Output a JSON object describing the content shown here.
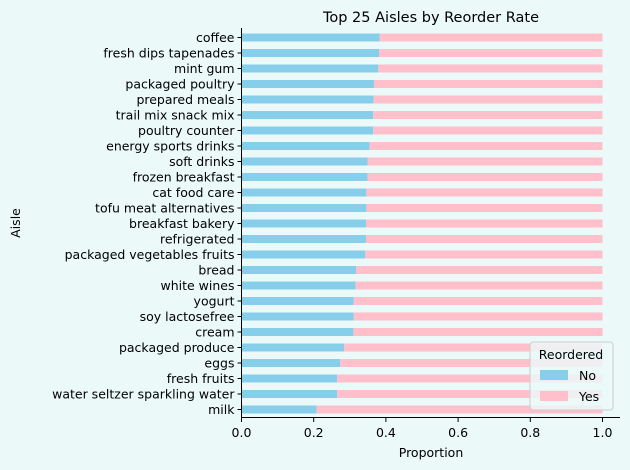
{
  "chart_data": {
    "type": "bar",
    "orientation": "horizontal",
    "stacked": true,
    "title": "Top 25 Aisles by Reorder Rate",
    "xlabel": "Proportion",
    "ylabel": "Aisle",
    "xlim": [
      0,
      1.05
    ],
    "xticks": [
      "0.0",
      "0.2",
      "0.4",
      "0.6",
      "0.8",
      "1.0"
    ],
    "grid": false,
    "legend": {
      "title": "Reordered",
      "placement": "lower-right"
    },
    "background": "#ebf9f9",
    "categories": [
      "coffee",
      "fresh dips tapenades",
      "mint gum",
      "packaged poultry",
      "prepared meals",
      "trail mix snack mix",
      "poultry counter",
      "energy sports drinks",
      "soft drinks",
      "frozen breakfast",
      "cat food care",
      "tofu meat alternatives",
      "breakfast bakery",
      "refrigerated",
      "packaged vegetables fruits",
      "bread",
      "white wines",
      "yogurt",
      "soy lactosefree",
      "cream",
      "packaged produce",
      "eggs",
      "fresh fruits",
      "water seltzer sparkling water",
      "milk"
    ],
    "series": [
      {
        "name": "No",
        "color": "#87ceeb",
        "values": [
          0.383,
          0.381,
          0.379,
          0.367,
          0.366,
          0.365,
          0.365,
          0.355,
          0.349,
          0.349,
          0.346,
          0.346,
          0.345,
          0.345,
          0.343,
          0.318,
          0.316,
          0.311,
          0.311,
          0.31,
          0.284,
          0.273,
          0.265,
          0.265,
          0.208
        ]
      },
      {
        "name": "Yes",
        "color": "#ffc0cb",
        "values": [
          0.617,
          0.619,
          0.621,
          0.633,
          0.634,
          0.635,
          0.635,
          0.645,
          0.651,
          0.651,
          0.654,
          0.654,
          0.655,
          0.655,
          0.657,
          0.682,
          0.684,
          0.689,
          0.689,
          0.69,
          0.716,
          0.727,
          0.735,
          0.735,
          0.792
        ]
      }
    ]
  }
}
